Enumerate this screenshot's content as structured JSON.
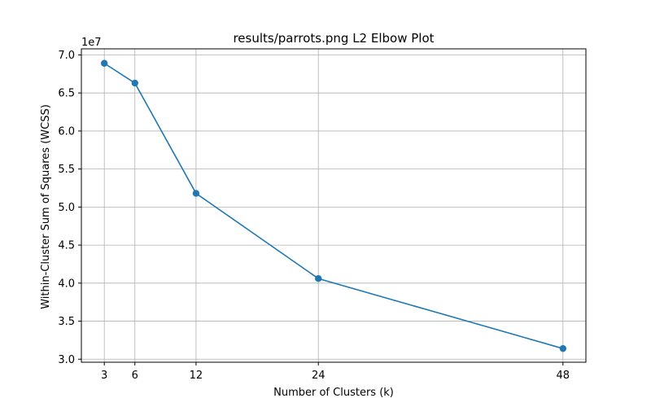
{
  "chart_data": {
    "type": "line",
    "title": "results/parrots.png L2 Elbow Plot",
    "xlabel": "Number of Clusters (k)",
    "ylabel": "Within-Cluster Sum of Squares (WCSS)",
    "y_scale_label": "1e7",
    "x": [
      3,
      6,
      12,
      24,
      48
    ],
    "xticks": [
      3,
      6,
      12,
      24,
      48
    ],
    "yticks": [
      3.0,
      3.5,
      4.0,
      4.5,
      5.0,
      5.5,
      6.0,
      6.5,
      7.0
    ],
    "ytick_labels": [
      "3.0",
      "3.5",
      "4.0",
      "4.5",
      "5.0",
      "5.5",
      "6.0",
      "6.5",
      "7.0"
    ],
    "series": [
      {
        "values": [
          6.89,
          6.63,
          5.18,
          4.06,
          3.14
        ],
        "color": "#1f77b4",
        "marker": "circle"
      }
    ],
    "xlim": [
      0.75,
      50.25
    ],
    "ylim": [
      2.96,
      7.08
    ],
    "grid": true
  }
}
